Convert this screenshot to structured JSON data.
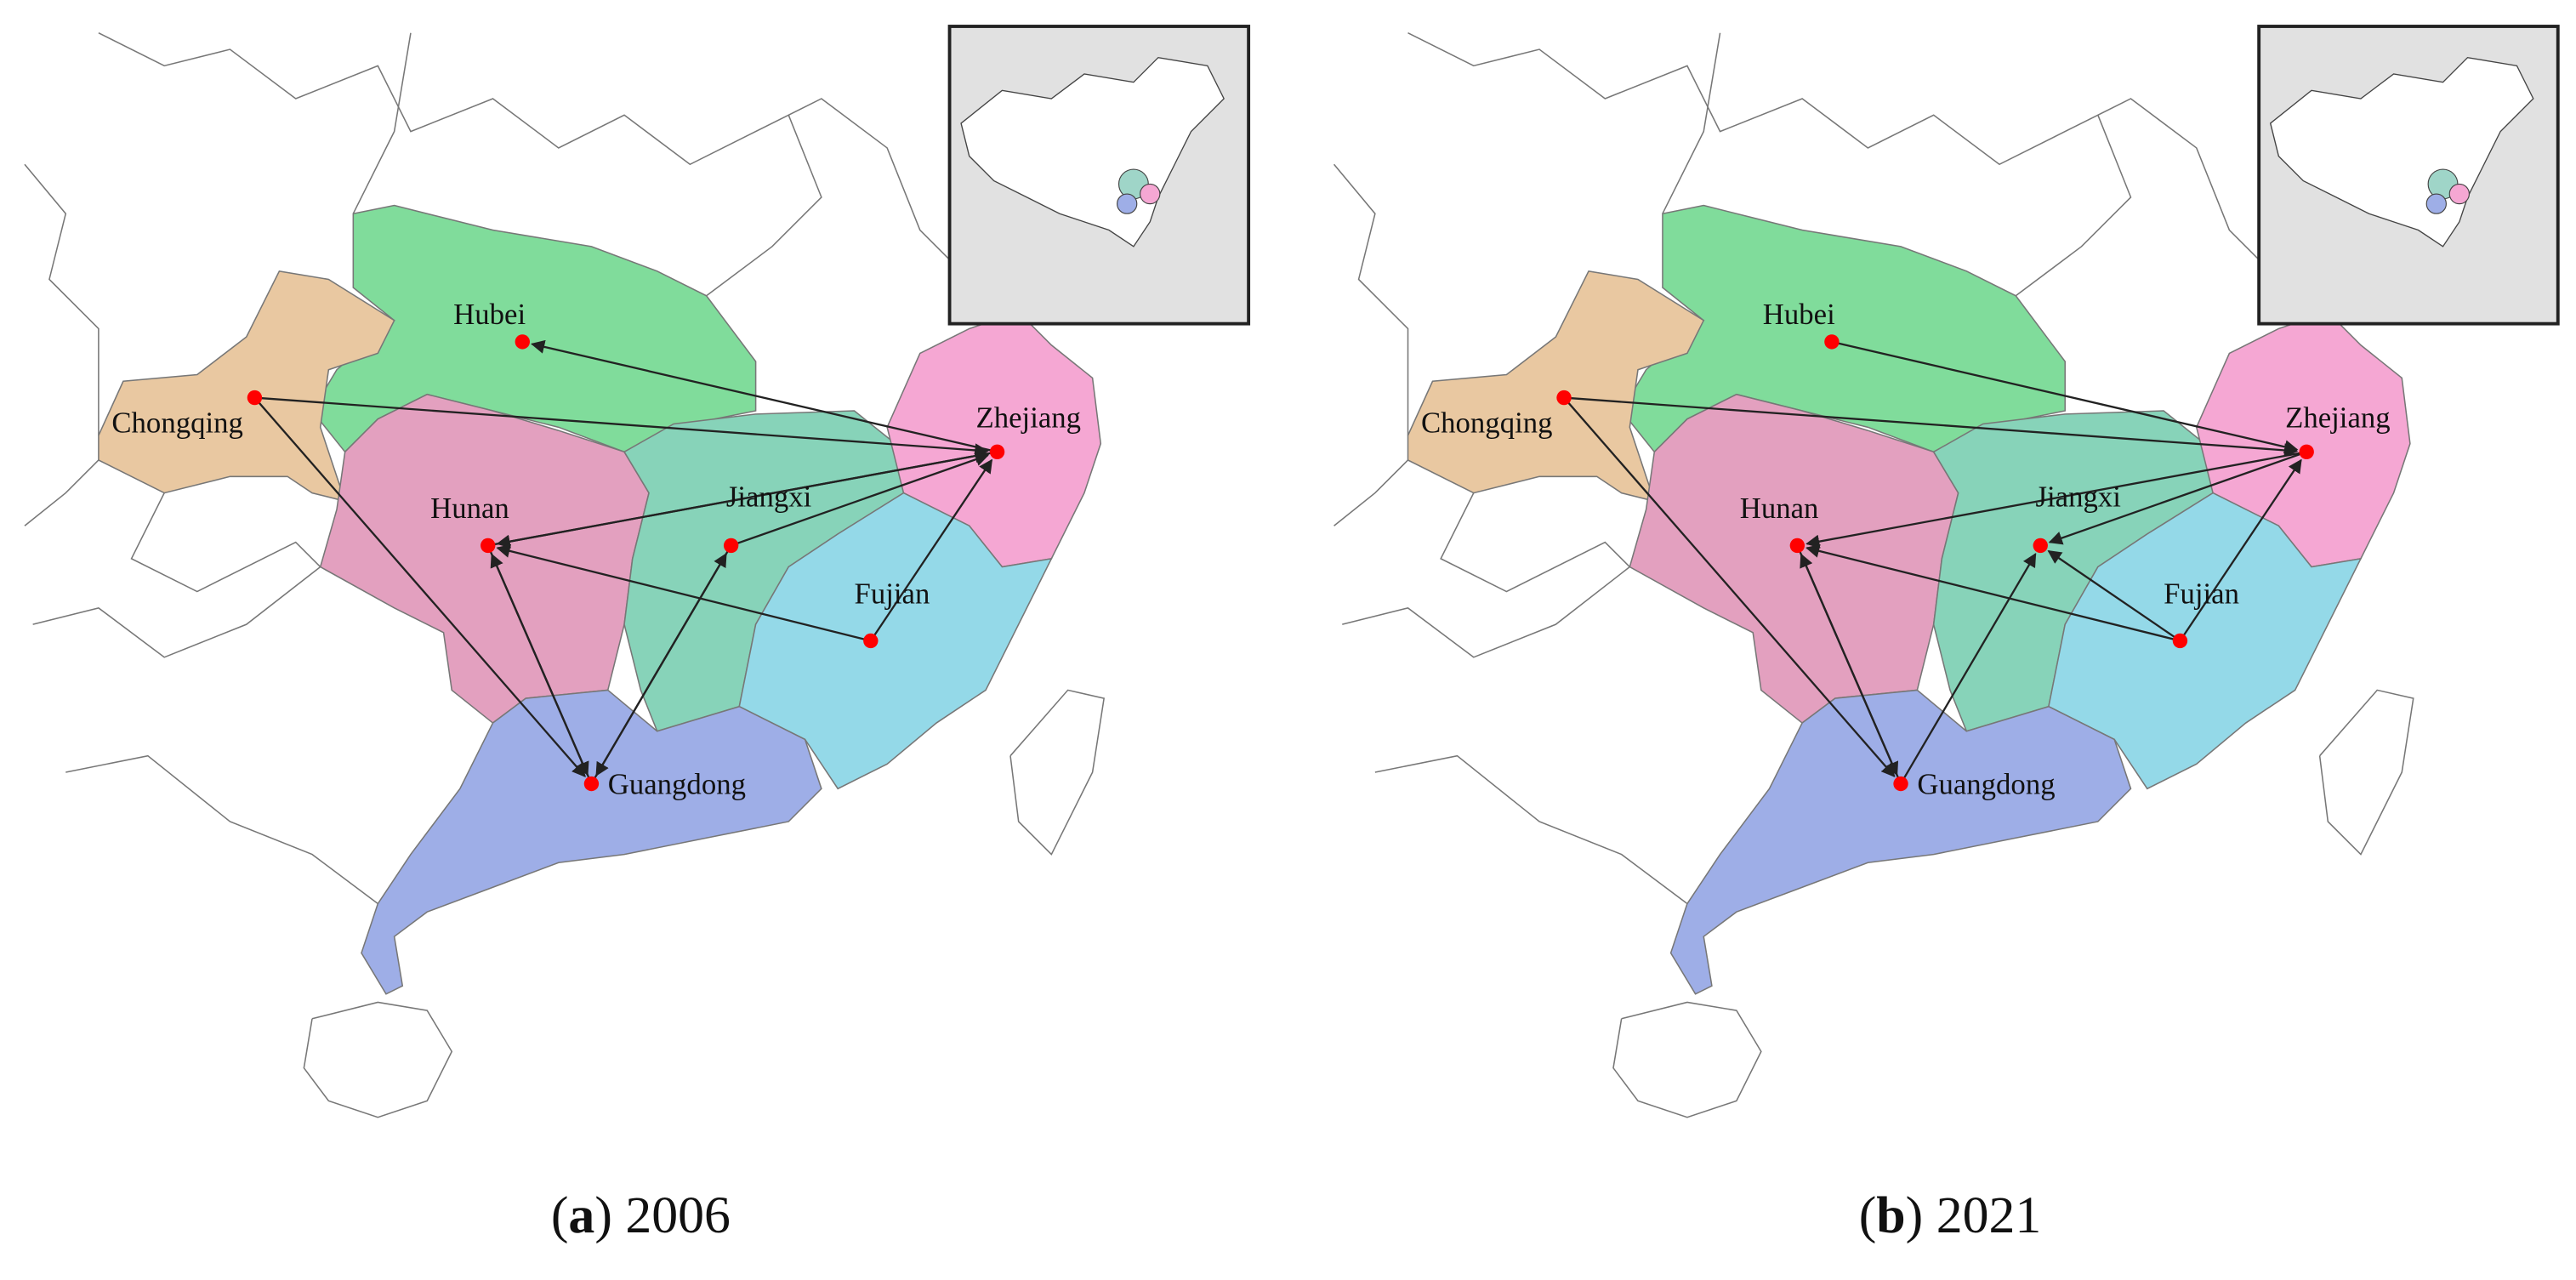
{
  "panels": [
    {
      "caption": [
        "(",
        "a",
        ") 2006"
      ],
      "provinces": [
        "Hubei",
        "Chongqing",
        "Hunan",
        "Jiangxi",
        "Zhejiang",
        "Fujian",
        "Guangdong"
      ]
    },
    {
      "caption": [
        "(",
        "b",
        ") 2021"
      ],
      "provinces": [
        "Hubei",
        "Chongqing",
        "Hunan",
        "Jiangxi",
        "Zhejiang",
        "Fujian",
        "Guangdong"
      ]
    }
  ]
}
